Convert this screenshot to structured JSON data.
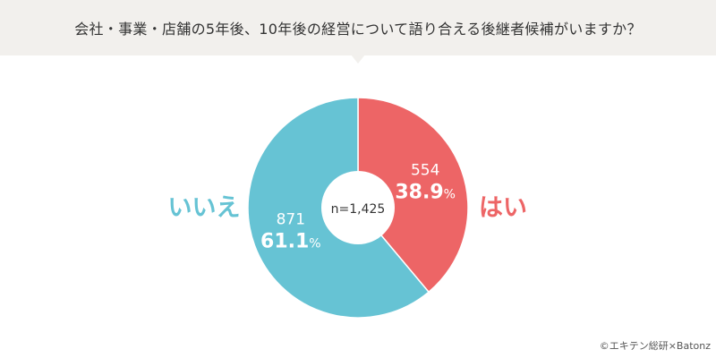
{
  "header": {
    "title": "会社・事業・店舗の5年後、10年後の経営について語り合える後継者候補がいますか？"
  },
  "chart_data": {
    "type": "pie",
    "total_label": "n=1,425",
    "slices": [
      {
        "label": "はい",
        "count": "554",
        "percent": 38.9,
        "percent_text": "38.9",
        "color": "#ed6566"
      },
      {
        "label": "いいえ",
        "count": "871",
        "percent": 61.1,
        "percent_text": "61.1",
        "color": "#66c3d4"
      }
    ],
    "percent_unit": "%"
  },
  "footer": {
    "credit": "©エキテン総研×Batonz"
  }
}
